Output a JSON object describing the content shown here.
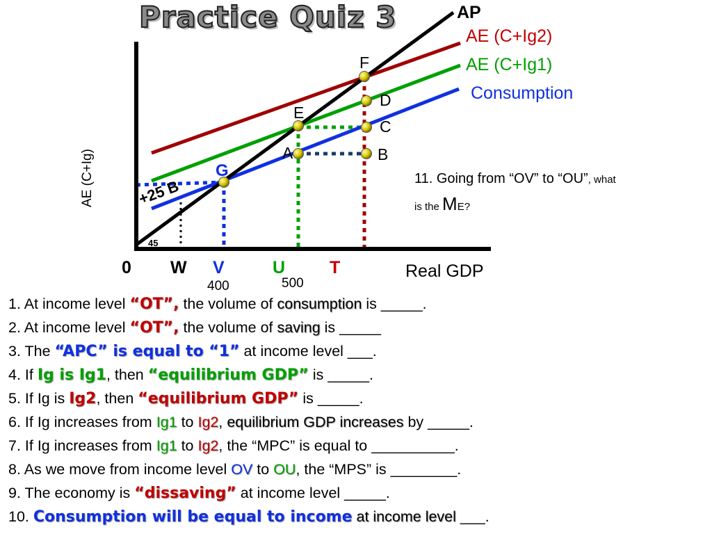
{
  "title": "Practice Quiz 3",
  "colors": {
    "ap": "#000000",
    "ig2": "#a00000",
    "ig1": "#00a000",
    "consumption": "#1030e0",
    "dot": "#d4c800"
  },
  "graph": {
    "y_axis_label": "AE (C+Ig)",
    "x_axis_label": "Real GDP",
    "angle_label": "45",
    "plus25_label": "+25 B",
    "line_labels": {
      "ap": "AP",
      "ig2": "AE (C+Ig2)",
      "ig1": "AE (C+Ig1)",
      "consumption": "Consumption"
    },
    "points": {
      "F": "F",
      "D": "D",
      "E": "E",
      "C": "C",
      "A": "A",
      "B": "B",
      "G": "G"
    },
    "x_ticks": {
      "O": "0",
      "W": "W",
      "V": "V",
      "U": "U",
      "T": "T"
    },
    "x_values": {
      "V": "400",
      "U": "500"
    }
  },
  "q11": {
    "p1": "11. Going from “OV” to “OU”",
    "p2": ", what",
    "p3": "is the ",
    "p4": "M",
    "p5": "E?"
  },
  "questions": {
    "q1": {
      "a": "1. At income level ",
      "b": "“OT”,",
      "c": " the volume of ",
      "d": "consumption",
      "e": " is _____."
    },
    "q2": {
      "a": "2. At income level ",
      "b": "“OT”,",
      "c": " the volume of ",
      "d": "saving",
      "e": " is _____"
    },
    "q3": {
      "a": "3. The ",
      "b": "“APC” is equal to “1”",
      "c": " at income level ___."
    },
    "q4": {
      "a": "4. If ",
      "b": "Ig is Ig1",
      "c": ", then ",
      "d": "“equilibrium GDP”",
      "e": " is _____."
    },
    "q5": {
      "a": "5. If Ig is ",
      "b": "Ig2",
      "c": ", then ",
      "d": "“equilibrium GDP”",
      "e": " is _____."
    },
    "q6": {
      "a": "6. If Ig increases from ",
      "b": "Ig1",
      "c": " to ",
      "d": "Ig2",
      "e": ", ",
      "f": "equilibrium GDP increases",
      "g": " by _____."
    },
    "q7": {
      "a": "7. If Ig increases from ",
      "b": "Ig1",
      "c": " to ",
      "d": "Ig2",
      "e": ", the “MPC” is equal to __________."
    },
    "q8": {
      "a": "8. As we move from income level ",
      "b": "OV",
      "c": " to ",
      "d": "OU",
      "e": ", the “MPS” is ________."
    },
    "q9": {
      "a": "9. The economy is ",
      "b": "“dissaving”",
      "c": " at income level _____."
    },
    "q10": {
      "a": "10. ",
      "b": "Consumption will be equal to income",
      "c": " at income level",
      "d": " ___."
    }
  }
}
